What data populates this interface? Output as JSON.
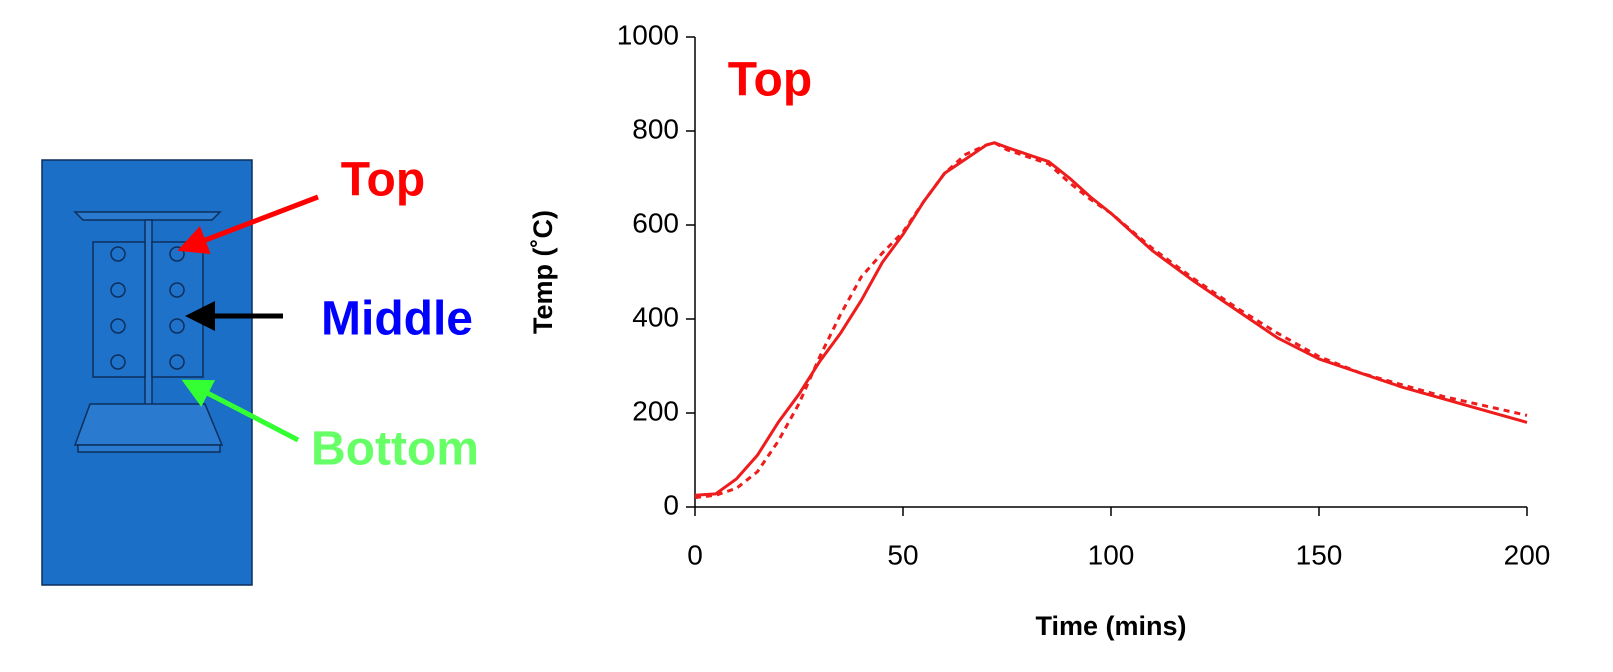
{
  "diagram": {
    "labels": [
      "Top",
      "Middle",
      "Bottom"
    ]
  },
  "chart_data": {
    "type": "line",
    "annotation": "Top",
    "x_label": "Time (mins)",
    "y_label": "Temp  (˚C)",
    "x": [
      0,
      5,
      10,
      15,
      20,
      25,
      30,
      35,
      40,
      45,
      50,
      55,
      60,
      65,
      70,
      72,
      75,
      80,
      85,
      90,
      95,
      100,
      110,
      120,
      130,
      140,
      150,
      160,
      170,
      180,
      190,
      200
    ],
    "series": [
      {
        "color": "#ee1c1c",
        "dash": false,
        "values": [
          25,
          28,
          60,
          110,
          180,
          240,
          310,
          370,
          440,
          520,
          580,
          650,
          710,
          740,
          770,
          775,
          765,
          750,
          735,
          700,
          660,
          625,
          545,
          480,
          420,
          360,
          315,
          285,
          255,
          230,
          205,
          180
        ]
      },
      {
        "color": "#ee1c1c",
        "dash": true,
        "values": [
          20,
          25,
          40,
          75,
          140,
          220,
          320,
          410,
          490,
          540,
          585,
          650,
          710,
          750,
          770,
          775,
          760,
          745,
          730,
          690,
          655,
          625,
          550,
          485,
          425,
          370,
          320,
          285,
          260,
          235,
          215,
          195
        ]
      }
    ],
    "xlim": [
      0,
      200
    ],
    "xticks": [
      0,
      50,
      100,
      150,
      200
    ],
    "ylim": [
      0,
      1000
    ],
    "yticks": [
      0,
      200,
      400,
      600,
      800,
      1000
    ],
    "grid": false
  }
}
